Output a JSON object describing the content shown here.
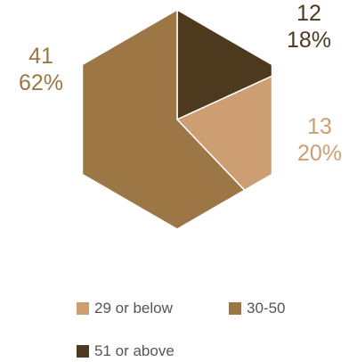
{
  "chart_data": {
    "type": "pie",
    "title": "",
    "categories": [
      "29 or below",
      "30-50",
      "51 or above"
    ],
    "values": [
      13,
      41,
      12
    ],
    "percent_labels": [
      "20%",
      "62%",
      "18%"
    ],
    "colors": [
      "#CC9E72",
      "#9C7644",
      "#4D391D"
    ],
    "label_colors": [
      "#CC9E72",
      "#9C7644",
      "#4D391D"
    ],
    "legend": "bottom",
    "start": "12 o'clock, clockwise from 51 or above"
  }
}
